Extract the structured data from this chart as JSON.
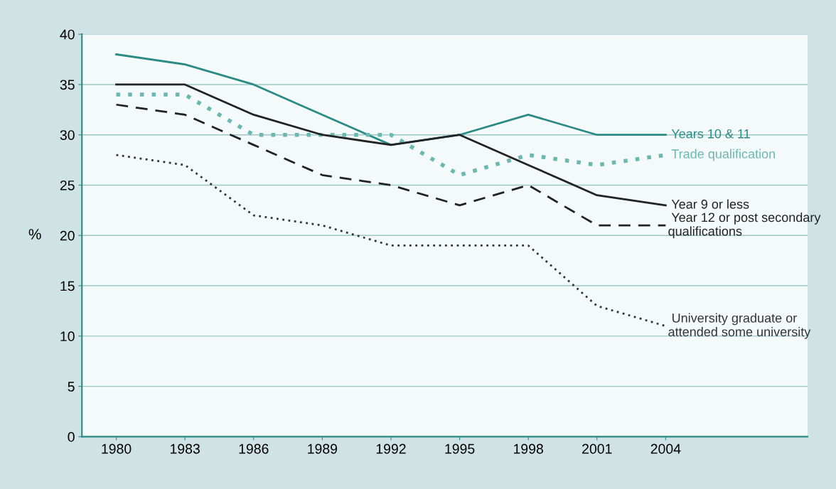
{
  "chart_data": {
    "type": "line",
    "ylabel": "%",
    "x": [
      1980,
      1983,
      1986,
      1989,
      1992,
      1995,
      1998,
      2001,
      2004
    ],
    "xlim": [
      1978.5,
      2010.2
    ],
    "xticks": [
      1980,
      1983,
      1986,
      1989,
      1992,
      1995,
      1998,
      2001,
      2004
    ],
    "ylim": [
      0,
      40
    ],
    "yticks": [
      0,
      5,
      10,
      15,
      20,
      25,
      30,
      35,
      40
    ],
    "grid": "y",
    "legend": false,
    "marker": "none",
    "series": [
      {
        "name": "Years 10 & 11",
        "color": "#2a8a84",
        "line_style": "solid",
        "values": [
          38,
          37,
          35,
          32,
          29,
          30,
          32,
          30,
          30
        ]
      },
      {
        "name": "Trade qualification",
        "color": "#6ab8b0",
        "line_style": "dotted",
        "values": [
          34,
          34,
          30,
          30,
          30,
          26,
          28,
          27,
          28
        ]
      },
      {
        "name": "Year 9 or less",
        "color": "#222222",
        "line_style": "solid",
        "values": [
          35,
          35,
          32,
          30,
          29,
          30,
          27,
          24,
          23
        ]
      },
      {
        "name": "Year 12 or post secondary\nqualifications",
        "color": "#222222",
        "line_style": "dashed",
        "values": [
          33,
          32,
          29,
          26,
          25,
          23,
          25,
          21,
          21
        ]
      },
      {
        "name": "University graduate or\nattended some university",
        "color": "#333333",
        "line_style": "dotted",
        "values": [
          28,
          27,
          22,
          21,
          19,
          19,
          19,
          13,
          11
        ]
      }
    ]
  }
}
